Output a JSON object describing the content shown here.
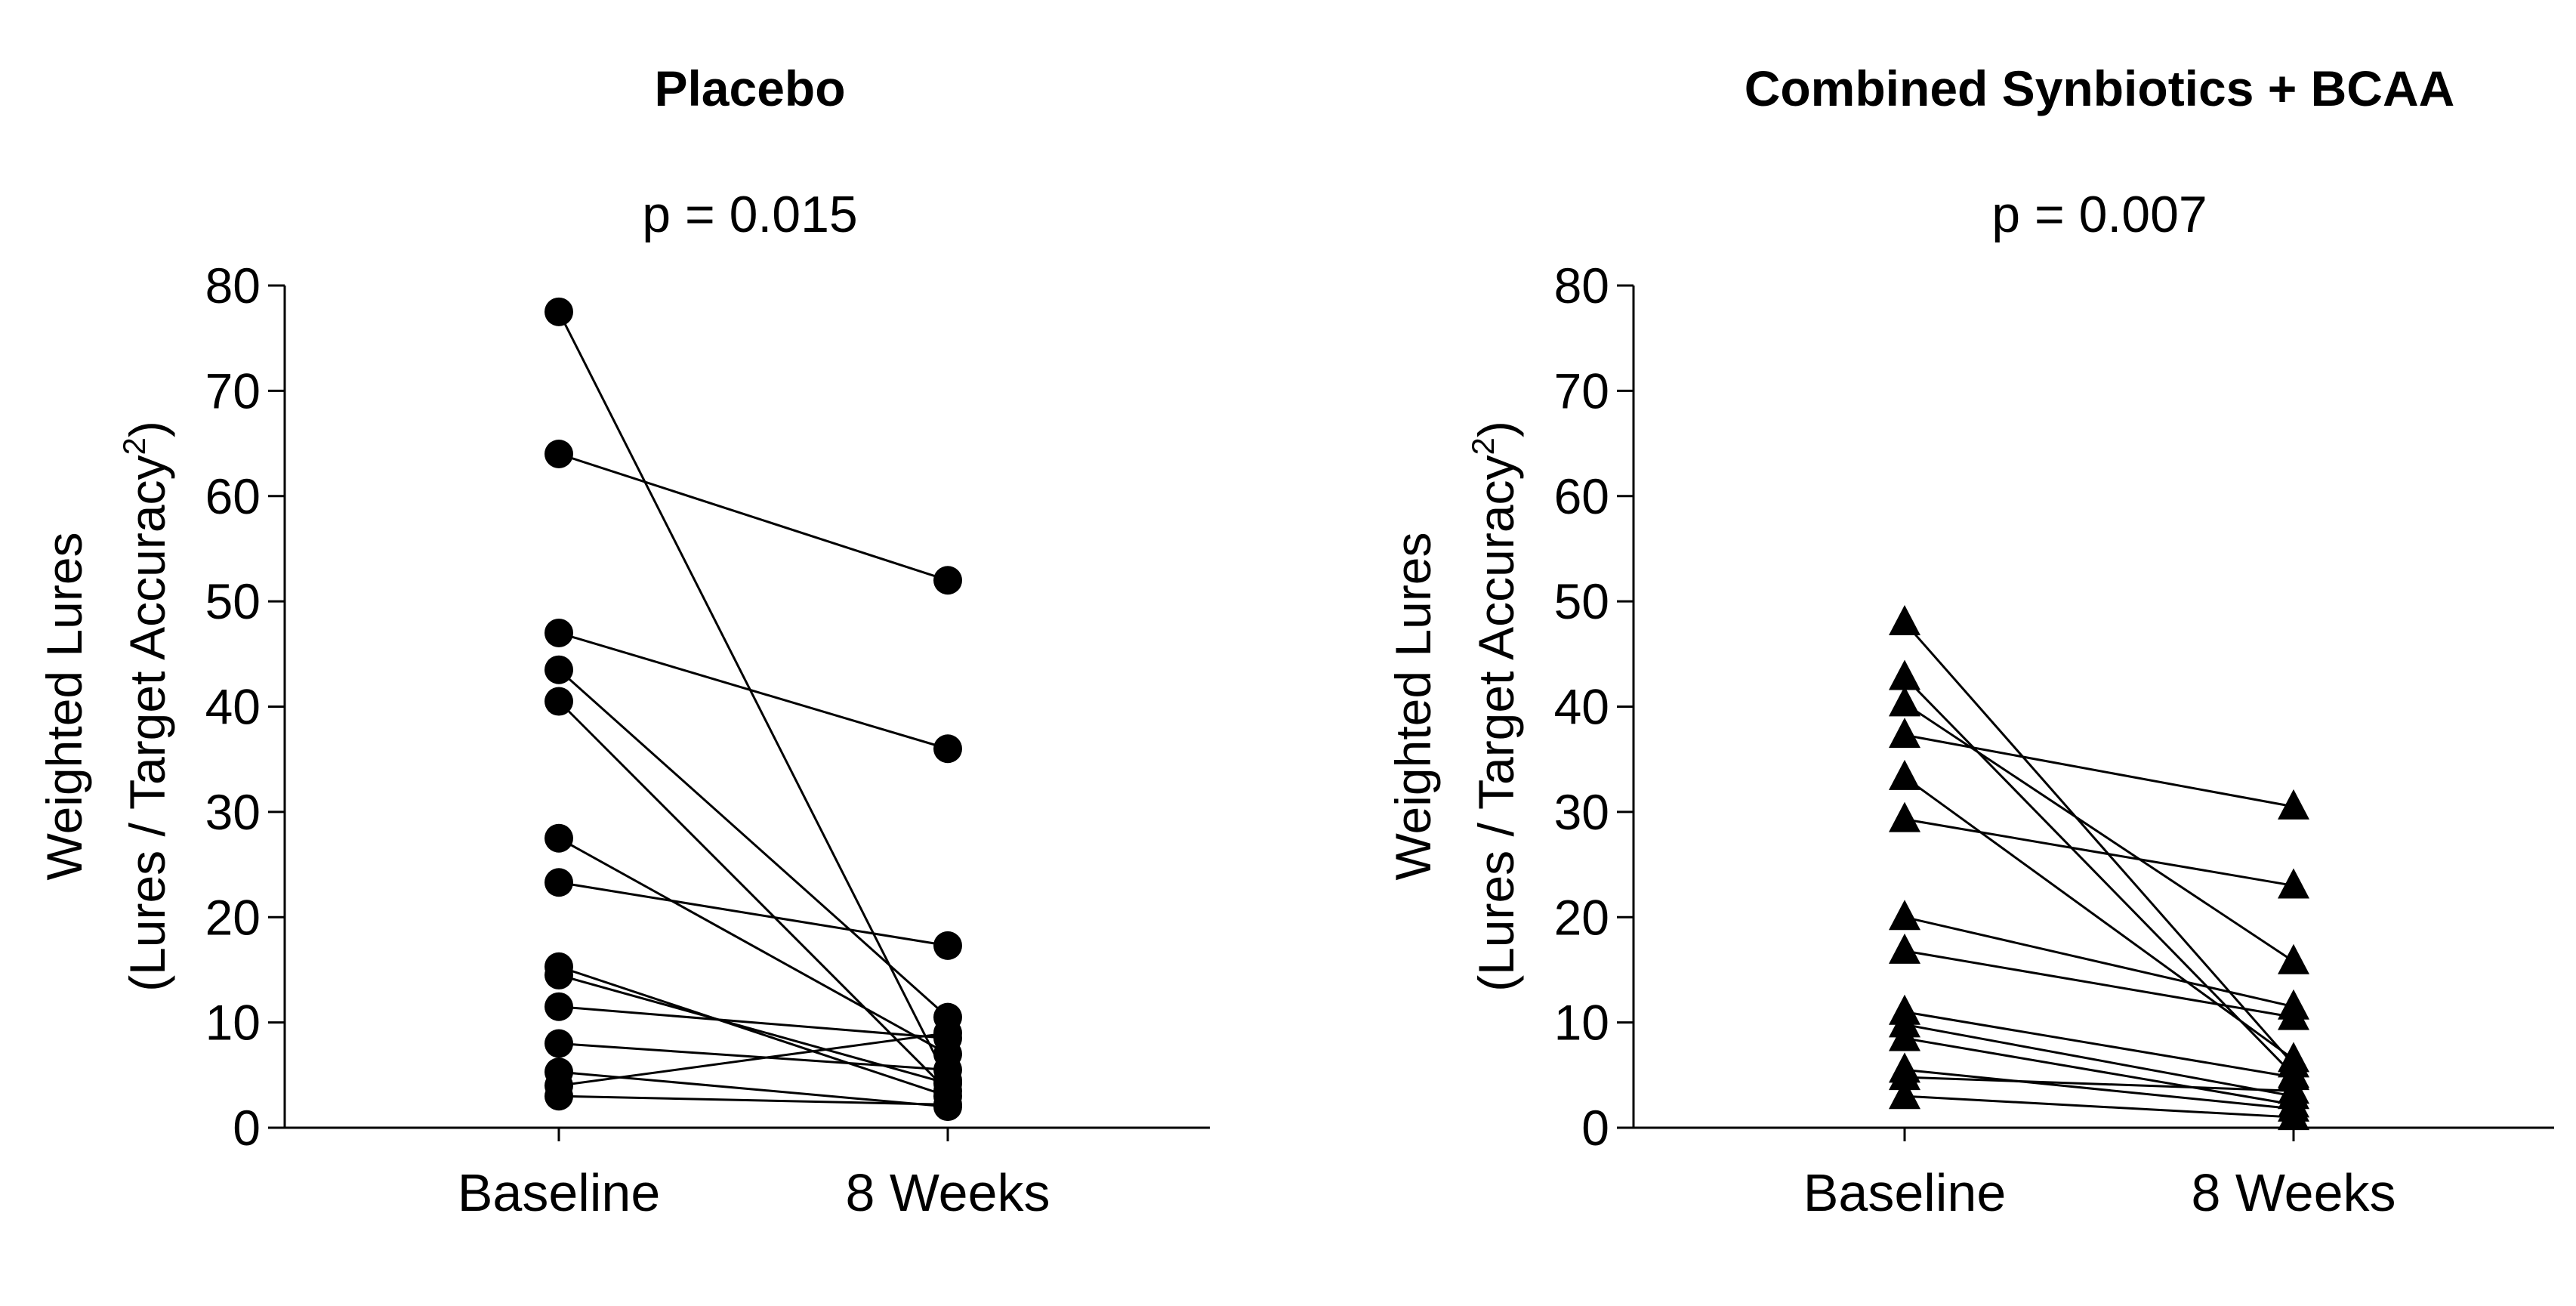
{
  "chart_data": [
    {
      "type": "scatter",
      "title": "Placebo",
      "annotation": "p = 0.015",
      "ylabel_line1": "Weighted Lures",
      "ylabel_line2_main": "(Lures / Target Accuracy",
      "ylabel_superscript": "2",
      "ylabel_line2_end": ")",
      "categories": [
        "Baseline",
        "8 Weeks"
      ],
      "ylim": [
        0,
        80
      ],
      "yticks": [
        0,
        10,
        20,
        30,
        40,
        50,
        60,
        70,
        80
      ],
      "marker": "circle",
      "pairs": [
        [
          77.5,
          4.5
        ],
        [
          64.0,
          52.0
        ],
        [
          47.0,
          36.0
        ],
        [
          43.5,
          10.5
        ],
        [
          40.5,
          3.5
        ],
        [
          27.5,
          7.0
        ],
        [
          23.3,
          17.3
        ],
        [
          15.3,
          3.0
        ],
        [
          14.5,
          4.2
        ],
        [
          11.5,
          8.5
        ],
        [
          8.0,
          5.5
        ],
        [
          5.3,
          2.0
        ],
        [
          4.0,
          9.0
        ],
        [
          3.0,
          2.2
        ]
      ]
    },
    {
      "type": "scatter",
      "title": "Combined Synbiotics +  BCAA",
      "annotation": "p = 0.007",
      "ylabel_line1": "Weighted Lures",
      "ylabel_line2_main": "(Lures / Target Accuracy",
      "ylabel_superscript": "2",
      "ylabel_line2_end": ")",
      "categories": [
        "Baseline",
        "8 Weeks"
      ],
      "ylim": [
        0,
        80
      ],
      "yticks": [
        0,
        10,
        20,
        30,
        40,
        50,
        60,
        70,
        80
      ],
      "marker": "triangle",
      "pairs": [
        [
          48.0,
          6.0
        ],
        [
          42.8,
          5.0
        ],
        [
          40.3,
          15.8
        ],
        [
          37.3,
          30.5
        ],
        [
          33.3,
          6.5
        ],
        [
          29.3,
          23.0
        ],
        [
          20.0,
          11.5
        ],
        [
          16.8,
          10.5
        ],
        [
          11.0,
          4.8
        ],
        [
          9.8,
          3.0
        ],
        [
          8.5,
          2.2
        ],
        [
          5.5,
          1.8
        ],
        [
          4.8,
          3.5
        ],
        [
          3.0,
          1.0
        ]
      ]
    }
  ]
}
